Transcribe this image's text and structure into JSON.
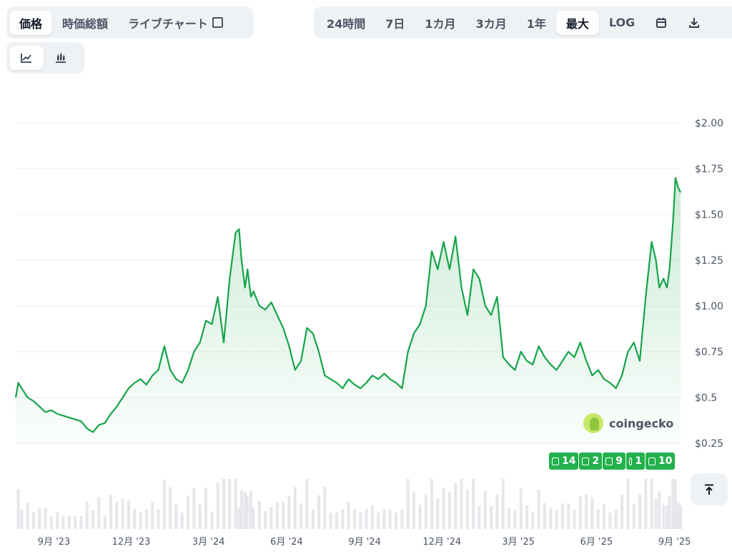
{
  "tabs": [
    {
      "label": "価格",
      "active": true
    },
    {
      "label": "時価総額",
      "active": false
    },
    {
      "label": "ライブチャート",
      "active": false,
      "external": true
    }
  ],
  "ranges": [
    {
      "label": "24時間",
      "active": false
    },
    {
      "label": "7日",
      "active": false
    },
    {
      "label": "1カ月",
      "active": false
    },
    {
      "label": "3カ月",
      "active": false
    },
    {
      "label": "1年",
      "active": false
    },
    {
      "label": "最大",
      "active": true
    },
    {
      "label": "LOG",
      "active": false
    }
  ],
  "toolbar_icons": [
    "calendar-icon",
    "download-icon"
  ],
  "chart_type_icons": [
    "line-chart-icon",
    "candlestick-icon"
  ],
  "watermark": "coingecko",
  "news_badges": [
    "14",
    "2",
    "9",
    "1",
    "10"
  ],
  "colors": {
    "line": "#16a34a",
    "badge": "#22b14c",
    "grid": "#eceff3"
  },
  "chart_data": {
    "type": "line",
    "title": "",
    "xlabel": "",
    "ylabel": "",
    "ylim": [
      0.25,
      2.0
    ],
    "yticks": [
      "$2.00",
      "$1.75",
      "$1.50",
      "$1.25",
      "$1.00",
      "$0.75",
      "$0.5",
      "$0.25"
    ],
    "ytick_values": [
      2.0,
      1.75,
      1.5,
      1.25,
      1.0,
      0.75,
      0.5,
      0.25
    ],
    "xticks": [
      "9月 '23",
      "12月 '23",
      "3月 '24",
      "6月 '24",
      "9月 '24",
      "12月 '24",
      "3月 '25",
      "6月 '25",
      "9月 '25"
    ],
    "xtick_dates": [
      "2023-09-01",
      "2023-12-01",
      "2024-03-01",
      "2024-06-01",
      "2024-09-01",
      "2024-12-01",
      "2025-03-01",
      "2025-06-01",
      "2025-09-01"
    ],
    "series": [
      {
        "name": "",
        "x": [
          "2023-07-18",
          "2023-07-21",
          "2023-07-25",
          "2023-08-01",
          "2023-08-08",
          "2023-08-15",
          "2023-08-22",
          "2023-08-29",
          "2023-09-05",
          "2023-09-12",
          "2023-09-19",
          "2023-09-26",
          "2023-10-03",
          "2023-10-10",
          "2023-10-17",
          "2023-10-24",
          "2023-10-31",
          "2023-11-07",
          "2023-11-14",
          "2023-11-21",
          "2023-11-28",
          "2023-12-05",
          "2023-12-12",
          "2023-12-19",
          "2023-12-26",
          "2024-01-02",
          "2024-01-09",
          "2024-01-16",
          "2024-01-23",
          "2024-01-30",
          "2024-02-06",
          "2024-02-13",
          "2024-02-20",
          "2024-02-27",
          "2024-03-05",
          "2024-03-12",
          "2024-03-19",
          "2024-03-26",
          "2024-04-02",
          "2024-04-06",
          "2024-04-09",
          "2024-04-13",
          "2024-04-16",
          "2024-04-20",
          "2024-04-23",
          "2024-04-30",
          "2024-05-07",
          "2024-05-14",
          "2024-05-21",
          "2024-05-28",
          "2024-06-04",
          "2024-06-11",
          "2024-06-18",
          "2024-06-25",
          "2024-07-02",
          "2024-07-09",
          "2024-07-16",
          "2024-07-23",
          "2024-07-30",
          "2024-08-06",
          "2024-08-13",
          "2024-08-20",
          "2024-08-27",
          "2024-09-03",
          "2024-09-10",
          "2024-09-17",
          "2024-09-24",
          "2024-10-01",
          "2024-10-08",
          "2024-10-15",
          "2024-10-22",
          "2024-10-29",
          "2024-11-05",
          "2024-11-12",
          "2024-11-19",
          "2024-11-26",
          "2024-12-03",
          "2024-12-10",
          "2024-12-17",
          "2024-12-24",
          "2024-12-31",
          "2025-01-07",
          "2025-01-14",
          "2025-01-21",
          "2025-01-28",
          "2025-02-04",
          "2025-02-11",
          "2025-02-18",
          "2025-02-25",
          "2025-03-04",
          "2025-03-11",
          "2025-03-18",
          "2025-03-25",
          "2025-04-01",
          "2025-04-08",
          "2025-04-15",
          "2025-04-22",
          "2025-04-29",
          "2025-05-06",
          "2025-05-13",
          "2025-05-20",
          "2025-05-27",
          "2025-06-03",
          "2025-06-10",
          "2025-06-17",
          "2025-06-24",
          "2025-07-01",
          "2025-07-08",
          "2025-07-15",
          "2025-07-22",
          "2025-07-29",
          "2025-08-05",
          "2025-08-10",
          "2025-08-14",
          "2025-08-19",
          "2025-08-23",
          "2025-08-26",
          "2025-08-30",
          "2025-09-02",
          "2025-09-05",
          "2025-09-08"
        ],
        "values": [
          0.5,
          0.58,
          0.55,
          0.5,
          0.48,
          0.45,
          0.42,
          0.43,
          0.41,
          0.4,
          0.39,
          0.38,
          0.37,
          0.33,
          0.31,
          0.35,
          0.36,
          0.41,
          0.45,
          0.5,
          0.55,
          0.58,
          0.6,
          0.57,
          0.62,
          0.65,
          0.78,
          0.65,
          0.6,
          0.58,
          0.65,
          0.75,
          0.8,
          0.92,
          0.9,
          1.05,
          0.8,
          1.15,
          1.4,
          1.42,
          1.25,
          1.1,
          1.2,
          1.05,
          1.08,
          1.0,
          0.98,
          1.02,
          0.95,
          0.88,
          0.78,
          0.65,
          0.7,
          0.88,
          0.85,
          0.75,
          0.62,
          0.6,
          0.58,
          0.55,
          0.6,
          0.57,
          0.55,
          0.58,
          0.62,
          0.6,
          0.63,
          0.6,
          0.58,
          0.55,
          0.75,
          0.85,
          0.9,
          1.0,
          1.3,
          1.2,
          1.35,
          1.2,
          1.38,
          1.1,
          0.95,
          1.2,
          1.15,
          1.0,
          0.95,
          1.05,
          0.72,
          0.68,
          0.65,
          0.75,
          0.7,
          0.68,
          0.78,
          0.72,
          0.68,
          0.65,
          0.7,
          0.75,
          0.72,
          0.8,
          0.7,
          0.62,
          0.65,
          0.6,
          0.58,
          0.55,
          0.62,
          0.75,
          0.8,
          0.7,
          1.05,
          1.35,
          1.25,
          1.1,
          1.15,
          1.1,
          1.2,
          1.45,
          1.7,
          1.65,
          1.62
        ]
      }
    ],
    "volume_bars": "faint grey volume histogram along bottom",
    "grid": true,
    "legend": "none"
  }
}
